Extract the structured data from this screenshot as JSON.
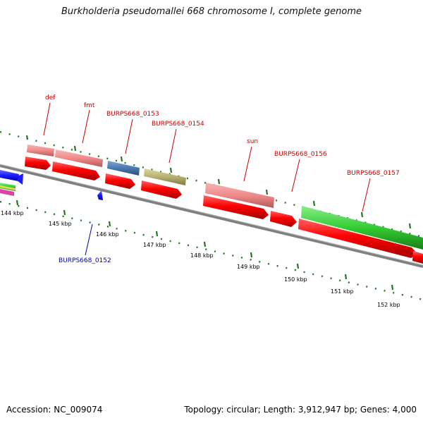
{
  "title": "Burkholderia pseudomallei 668 chromosome I, complete genome",
  "footer": {
    "accession": "Accession: NC_009074",
    "summary": "Topology: circular; Length: 3,912,947 bp; Genes: 4,000"
  },
  "colors": {
    "backbone": "#7a7a7a",
    "forward_gene_label": "#cc0000",
    "reverse_gene_label": "#0000aa",
    "tick": "#1f7a1f",
    "gene_salmon": "#f08a8a",
    "gene_red": "#ff0000",
    "gene_steel": "#4a7ab0",
    "gene_khaki": "#b8b070",
    "gene_green": "#33cc33",
    "gene_blue": "#1a1aff"
  },
  "scale_labels": [
    "144 kbp",
    "145 kbp",
    "146 kbp",
    "147 kbp",
    "148 kbp",
    "149 kbp",
    "150 kbp",
    "151 kbp",
    "152 kbp"
  ],
  "gene_labels": {
    "def": "def",
    "fmt": "fmt",
    "b0153": "BURPS668_0153",
    "b0154": "BURPS668_0154",
    "sun": "sun",
    "b0156": "BURPS668_0156",
    "b0157": "BURPS668_0157",
    "b0152": "BURPS668_0152"
  }
}
